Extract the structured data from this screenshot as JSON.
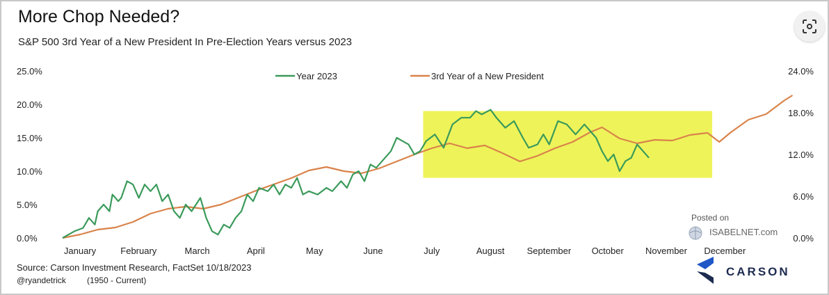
{
  "title": "More Chop Needed?",
  "subtitle": "S&P 500  3rd Year of a New President In Pre-Election Years versus 2023",
  "source": "Source: Carson Investment Research, FactSet 10/18/2023",
  "handle": "@ryandetrick",
  "range_note": "(1950 - Current)",
  "watermark": {
    "posted": "Posted on",
    "site": "ISABELNET.com"
  },
  "brand": "CARSON",
  "colors": {
    "green": "#3a9a5a",
    "orange": "#d9834a",
    "highlight": "#eef35a"
  },
  "chart_data": {
    "type": "line",
    "x_labels": [
      "January",
      "February",
      "March",
      "April",
      "May",
      "June",
      "July",
      "August",
      "September",
      "October",
      "November",
      "December"
    ],
    "y_left": {
      "ticks": [
        "0.0%",
        "5.0%",
        "10.0%",
        "15.0%",
        "20.0%",
        "25.0%"
      ],
      "range": [
        0,
        25
      ]
    },
    "y_right": {
      "ticks": [
        "0.0%",
        "6.0%",
        "12.0%",
        "18.0%",
        "24.0%"
      ],
      "range": [
        0,
        24
      ]
    },
    "highlight": {
      "from_month": 6.15,
      "to_month": 11.08,
      "y_from": 9,
      "y_to": 19
    },
    "series": [
      {
        "name": "Year 2023",
        "axis": "left",
        "color": "#3a9a5a",
        "points": [
          [
            0.0,
            0.0
          ],
          [
            0.2,
            1.0
          ],
          [
            0.35,
            1.5
          ],
          [
            0.45,
            3.0
          ],
          [
            0.55,
            2.0
          ],
          [
            0.6,
            4.0
          ],
          [
            0.7,
            5.0
          ],
          [
            0.8,
            4.0
          ],
          [
            0.85,
            6.5
          ],
          [
            0.95,
            5.5
          ],
          [
            1.0,
            6.0
          ],
          [
            1.1,
            8.5
          ],
          [
            1.2,
            8.0
          ],
          [
            1.3,
            6.0
          ],
          [
            1.4,
            8.0
          ],
          [
            1.5,
            7.0
          ],
          [
            1.6,
            8.0
          ],
          [
            1.7,
            5.5
          ],
          [
            1.8,
            6.5
          ],
          [
            1.9,
            4.0
          ],
          [
            2.0,
            3.0
          ],
          [
            2.1,
            5.0
          ],
          [
            2.2,
            4.0
          ],
          [
            2.35,
            6.0
          ],
          [
            2.45,
            3.0
          ],
          [
            2.55,
            1.0
          ],
          [
            2.65,
            0.5
          ],
          [
            2.75,
            2.0
          ],
          [
            2.85,
            1.5
          ],
          [
            2.95,
            3.0
          ],
          [
            3.05,
            4.0
          ],
          [
            3.15,
            6.5
          ],
          [
            3.25,
            5.5
          ],
          [
            3.35,
            7.5
          ],
          [
            3.5,
            7.0
          ],
          [
            3.6,
            8.0
          ],
          [
            3.7,
            6.5
          ],
          [
            3.8,
            8.0
          ],
          [
            3.9,
            7.5
          ],
          [
            4.0,
            9.0
          ],
          [
            4.1,
            6.5
          ],
          [
            4.2,
            7.0
          ],
          [
            4.35,
            6.5
          ],
          [
            4.5,
            7.5
          ],
          [
            4.6,
            7.0
          ],
          [
            4.75,
            8.5
          ],
          [
            4.85,
            7.5
          ],
          [
            4.95,
            9.5
          ],
          [
            5.05,
            10.0
          ],
          [
            5.15,
            8.5
          ],
          [
            5.25,
            11.0
          ],
          [
            5.35,
            10.5
          ],
          [
            5.5,
            12.0
          ],
          [
            5.6,
            13.0
          ],
          [
            5.7,
            15.0
          ],
          [
            5.8,
            14.5
          ],
          [
            5.9,
            14.0
          ],
          [
            6.0,
            12.5
          ],
          [
            6.1,
            13.0
          ],
          [
            6.2,
            14.5
          ],
          [
            6.35,
            15.5
          ],
          [
            6.5,
            13.5
          ],
          [
            6.65,
            17.0
          ],
          [
            6.8,
            18.0
          ],
          [
            6.95,
            18.0
          ],
          [
            7.05,
            19.0
          ],
          [
            7.15,
            18.5
          ],
          [
            7.3,
            19.2
          ],
          [
            7.4,
            18.0
          ],
          [
            7.55,
            16.5
          ],
          [
            7.7,
            17.5
          ],
          [
            7.85,
            15.0
          ],
          [
            7.95,
            13.5
          ],
          [
            8.1,
            14.0
          ],
          [
            8.2,
            15.5
          ],
          [
            8.3,
            14.0
          ],
          [
            8.45,
            17.5
          ],
          [
            8.6,
            17.0
          ],
          [
            8.75,
            15.5
          ],
          [
            8.9,
            17.0
          ],
          [
            9.0,
            16.0
          ],
          [
            9.1,
            15.0
          ],
          [
            9.2,
            13.0
          ],
          [
            9.3,
            11.5
          ],
          [
            9.4,
            12.5
          ],
          [
            9.5,
            10.0
          ],
          [
            9.6,
            11.5
          ],
          [
            9.7,
            12.0
          ],
          [
            9.8,
            14.0
          ],
          [
            9.9,
            13.0
          ],
          [
            10.0,
            12.0
          ]
        ]
      },
      {
        "name": "3rd Year of a New President",
        "axis": "right",
        "color": "#d9834a",
        "points": [
          [
            0.0,
            0.0
          ],
          [
            0.3,
            0.5
          ],
          [
            0.6,
            1.2
          ],
          [
            0.9,
            1.5
          ],
          [
            1.2,
            2.3
          ],
          [
            1.5,
            3.5
          ],
          [
            1.8,
            4.2
          ],
          [
            2.1,
            4.5
          ],
          [
            2.4,
            4.2
          ],
          [
            2.7,
            4.8
          ],
          [
            3.0,
            5.8
          ],
          [
            3.3,
            6.8
          ],
          [
            3.6,
            7.7
          ],
          [
            3.9,
            8.6
          ],
          [
            4.2,
            9.7
          ],
          [
            4.5,
            10.2
          ],
          [
            4.8,
            9.6
          ],
          [
            5.1,
            9.3
          ],
          [
            5.4,
            10.0
          ],
          [
            5.7,
            11.0
          ],
          [
            6.0,
            12.0
          ],
          [
            6.3,
            12.9
          ],
          [
            6.6,
            13.6
          ],
          [
            6.9,
            12.9
          ],
          [
            7.2,
            13.3
          ],
          [
            7.5,
            12.2
          ],
          [
            7.8,
            11.0
          ],
          [
            8.1,
            11.8
          ],
          [
            8.4,
            12.9
          ],
          [
            8.7,
            13.8
          ],
          [
            9.0,
            15.2
          ],
          [
            9.2,
            15.9
          ],
          [
            9.5,
            14.3
          ],
          [
            9.8,
            13.6
          ],
          [
            10.1,
            14.1
          ],
          [
            10.4,
            14.0
          ],
          [
            10.7,
            14.8
          ],
          [
            11.0,
            15.1
          ],
          [
            11.2,
            13.8
          ],
          [
            11.4,
            15.2
          ],
          [
            11.7,
            17.0
          ],
          [
            12.0,
            17.8
          ],
          [
            12.3,
            19.7
          ],
          [
            12.45,
            20.5
          ]
        ]
      }
    ]
  }
}
